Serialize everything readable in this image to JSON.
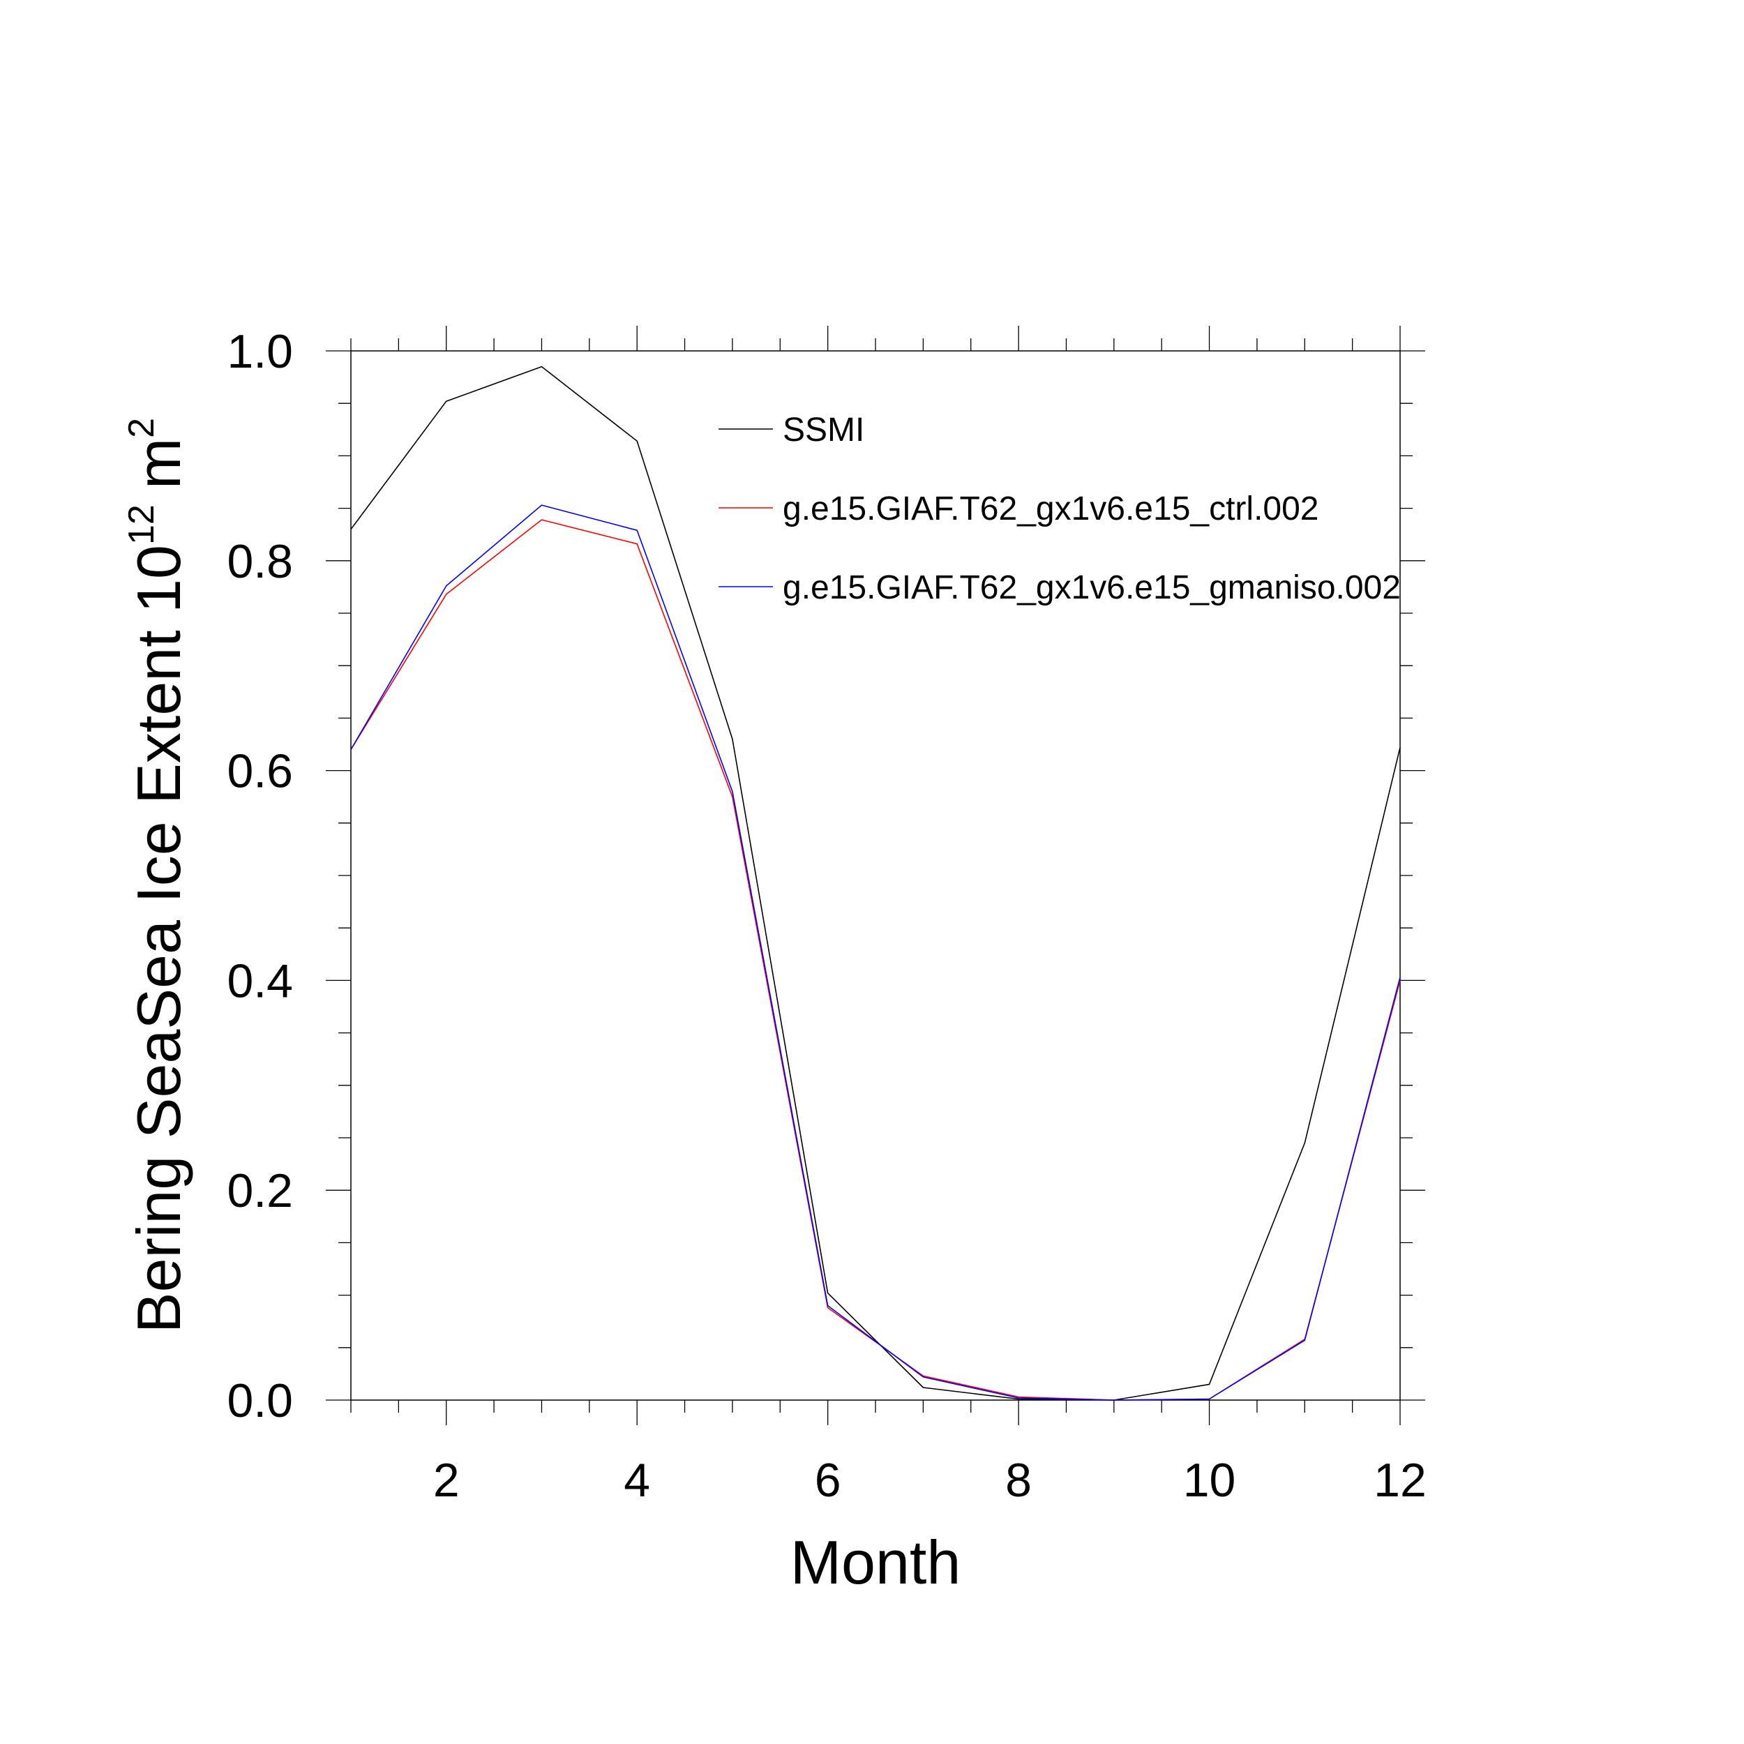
{
  "chart_data": {
    "type": "line",
    "title": "",
    "xlabel": "Month",
    "ylabel": {
      "text": "Bering SeaSea Ice Extent 10",
      "superscript": "12",
      "unit": "m",
      "unit_superscript": "2"
    },
    "x": [
      1,
      2,
      3,
      4,
      5,
      6,
      7,
      8,
      9,
      10,
      11,
      12
    ],
    "xlim": [
      1,
      12
    ],
    "ylim": [
      0.0,
      1.0
    ],
    "x_ticks": [
      {
        "value": 2,
        "label": "2"
      },
      {
        "value": 4,
        "label": "4"
      },
      {
        "value": 6,
        "label": "6"
      },
      {
        "value": 8,
        "label": "8"
      },
      {
        "value": 10,
        "label": "10"
      },
      {
        "value": 12,
        "label": "12"
      }
    ],
    "y_ticks": [
      {
        "value": 0.0,
        "label": "0.0"
      },
      {
        "value": 0.2,
        "label": "0.2"
      },
      {
        "value": 0.4,
        "label": "0.4"
      },
      {
        "value": 0.6,
        "label": "0.6"
      },
      {
        "value": 0.8,
        "label": "0.8"
      },
      {
        "value": 1.0,
        "label": "1.0"
      }
    ],
    "x_minor_step": 0.5,
    "y_minor_step": 0.05,
    "grid": false,
    "legend_position": "top-right",
    "series": [
      {
        "name": "SSMI",
        "color": "#000000",
        "values": [
          0.83,
          0.952,
          0.985,
          0.914,
          0.63,
          0.102,
          0.012,
          0.001,
          0.0,
          0.015,
          0.245,
          0.622
        ]
      },
      {
        "name": "g.e15.GIAF.T62_gx1v6.e15_ctrl.002",
        "color": "#ff0000",
        "values": [
          0.62,
          0.768,
          0.839,
          0.816,
          0.575,
          0.088,
          0.023,
          0.003,
          0.0,
          0.001,
          0.058,
          0.4
        ]
      },
      {
        "name": "g.e15.GIAF.T62_gx1v6.e15_gmaniso.002",
        "color": "#0000ff",
        "values": [
          0.62,
          0.776,
          0.853,
          0.829,
          0.58,
          0.09,
          0.022,
          0.002,
          0.0,
          0.001,
          0.057,
          0.403
        ]
      }
    ]
  }
}
